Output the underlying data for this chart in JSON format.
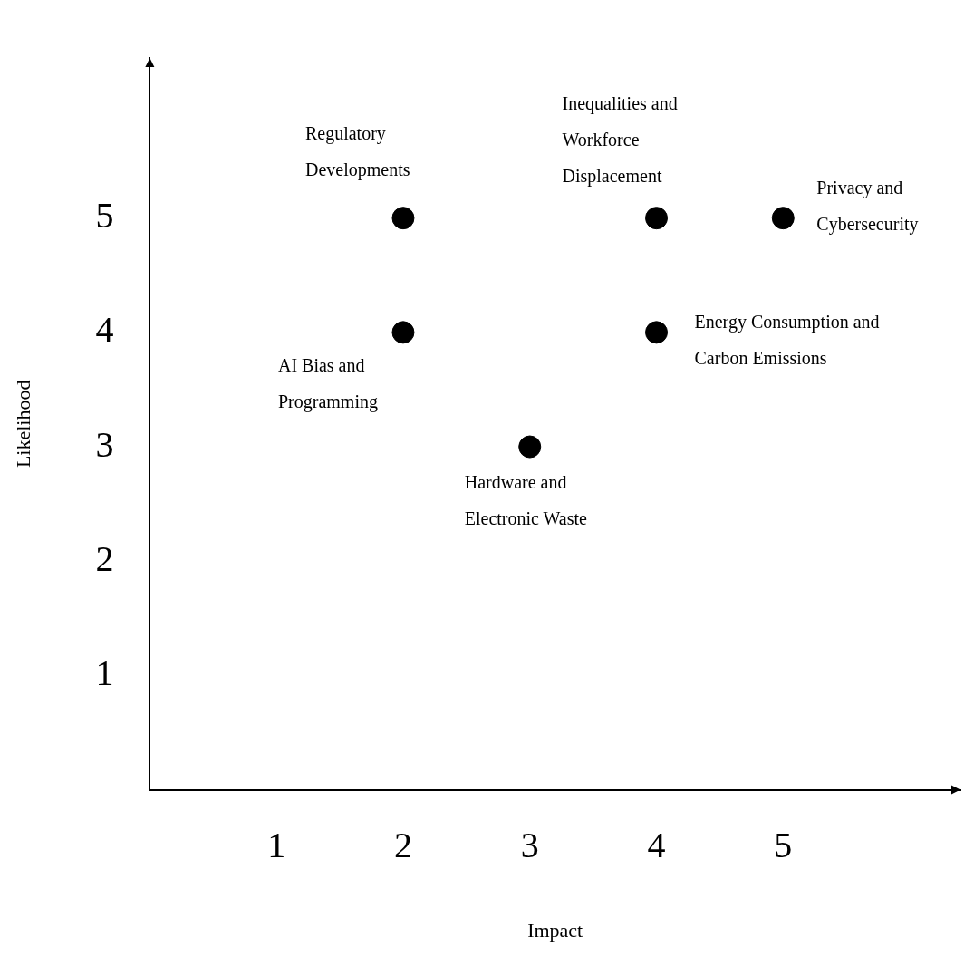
{
  "chart_data": {
    "type": "scatter",
    "xlabel": "Impact",
    "ylabel": "Likelihood",
    "x": [
      2,
      4,
      5,
      2,
      4,
      3
    ],
    "values": [
      5,
      5,
      5,
      4,
      4,
      3
    ],
    "color": "#000000",
    "marker": "circle",
    "grid": false,
    "legend": false,
    "xlim": [
      0,
      6.4
    ],
    "ylim": [
      0,
      6.4
    ],
    "xticks": [
      1,
      2,
      3,
      4,
      5
    ],
    "yticks": [
      1,
      2,
      3,
      4,
      5
    ],
    "annotations": [
      {
        "text": "Regulatory Developments",
        "x": 2,
        "y": 5
      },
      {
        "text": "Inequalities and Workforce Displacement",
        "x": 4,
        "y": 5
      },
      {
        "text": "Privacy and Cybersecurity",
        "x": 5,
        "y": 5
      },
      {
        "text": "AI Bias and Programming",
        "x": 2,
        "y": 4
      },
      {
        "text": "Energy Consumption and Carbon Emissions",
        "x": 4,
        "y": 4
      },
      {
        "text": "Hardware and Electronic Waste",
        "x": 3,
        "y": 3
      }
    ]
  }
}
